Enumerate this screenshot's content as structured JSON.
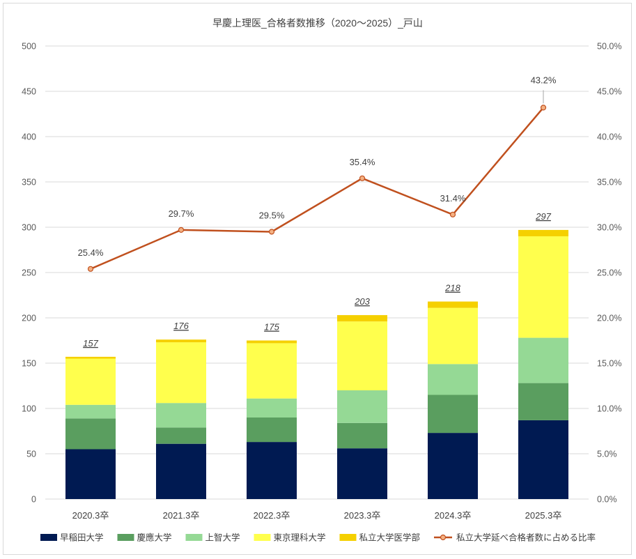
{
  "chart_data": {
    "type": "bar",
    "title": "早慶上理医_合格者数推移（2020～2025）_戸山",
    "categories": [
      "2020.3卒",
      "2021.3卒",
      "2022.3卒",
      "2023.3卒",
      "2024.3卒",
      "2025.3卒"
    ],
    "series": [
      {
        "name": "早稲田大学",
        "color": "#001a52",
        "values": [
          55,
          61,
          63,
          56,
          73,
          87
        ]
      },
      {
        "name": "慶應大学",
        "color": "#5a9e5f",
        "values": [
          34,
          18,
          27,
          28,
          42,
          41
        ]
      },
      {
        "name": "上智大学",
        "color": "#95d995",
        "values": [
          15,
          27,
          21,
          36,
          34,
          50
        ]
      },
      {
        "name": "東京理科大学",
        "color": "#ffff4d",
        "values": [
          51,
          67,
          61,
          76,
          62,
          112
        ]
      },
      {
        "name": "私立大学医学部",
        "color": "#f5d000",
        "values": [
          2,
          3,
          3,
          7,
          7,
          7
        ]
      }
    ],
    "totals": [
      "157",
      "176",
      "175",
      "203",
      "218",
      "297"
    ],
    "line_series": {
      "name": "私立大学延べ合格者数に占める比率",
      "color": "#c0501e",
      "values": [
        25.4,
        29.7,
        29.5,
        35.4,
        31.4,
        43.2
      ],
      "labels": [
        "25.4%",
        "29.7%",
        "29.5%",
        "35.4%",
        "31.4%",
        "43.2%"
      ]
    },
    "y_left": {
      "min": 0,
      "max": 500,
      "ticks": [
        "0",
        "50",
        "100",
        "150",
        "200",
        "250",
        "300",
        "350",
        "400",
        "450",
        "500"
      ]
    },
    "y_right": {
      "min": 0,
      "max": 50,
      "ticks": [
        "0.0%",
        "5.0%",
        "10.0%",
        "15.0%",
        "20.0%",
        "25.0%",
        "30.0%",
        "35.0%",
        "40.0%",
        "45.0%",
        "50.0%"
      ]
    },
    "grid": true,
    "legend": "bottom"
  }
}
